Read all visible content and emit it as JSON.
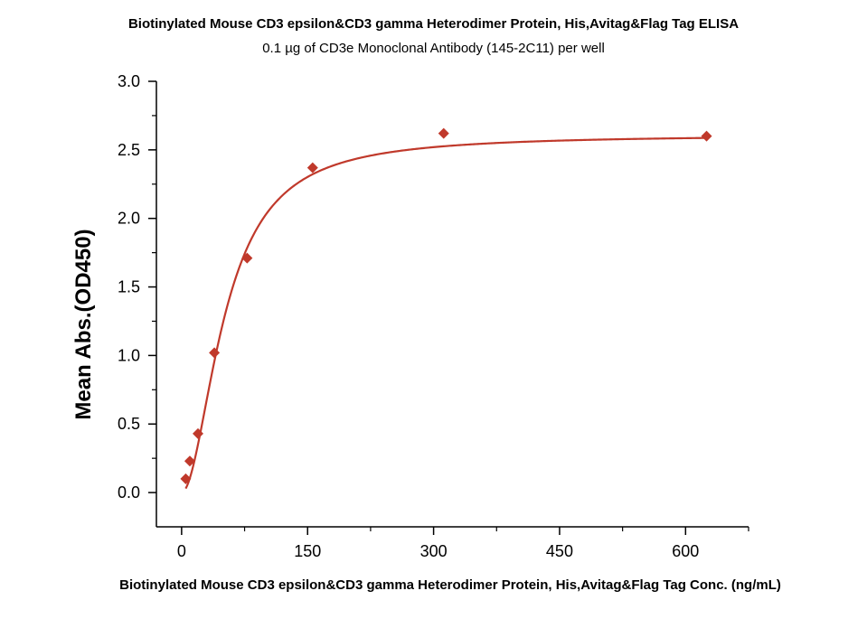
{
  "chart_data": {
    "type": "scatter",
    "title": "Biotinylated Mouse CD3 epsilon&CD3 gamma Heterodimer Protein, His,Avitag&Flag Tag ELISA",
    "subtitle": "0.1 µg of CD3e Monoclonal Antibody (145-2C11) per well",
    "xlabel": "Biotinylated Mouse CD3 epsilon&CD3 gamma Heterodimer Protein, His,Avitag&Flag Tag Conc. (ng/mL)",
    "ylabel": "Mean Abs.(OD450)",
    "xlim": [
      -30,
      675
    ],
    "ylim": [
      -0.25,
      3.0
    ],
    "x_ticks": [
      "0",
      "150",
      "300",
      "450",
      "600"
    ],
    "y_ticks": [
      "0.0",
      "0.5",
      "1.0",
      "1.5",
      "2.0",
      "2.5",
      "3.0"
    ],
    "grid": false,
    "series": [
      {
        "color": "#c0392b",
        "x": [
          4.9,
          9.8,
          19.5,
          39,
          78,
          156,
          312,
          625
        ],
        "y": [
          0.1,
          0.23,
          0.43,
          1.02,
          1.71,
          2.37,
          2.62,
          2.6
        ]
      }
    ],
    "fit_curve": {
      "color": "#c0392b",
      "top": 2.61,
      "bottom": 0.0,
      "ec50": 52,
      "hill": 1.9
    }
  }
}
